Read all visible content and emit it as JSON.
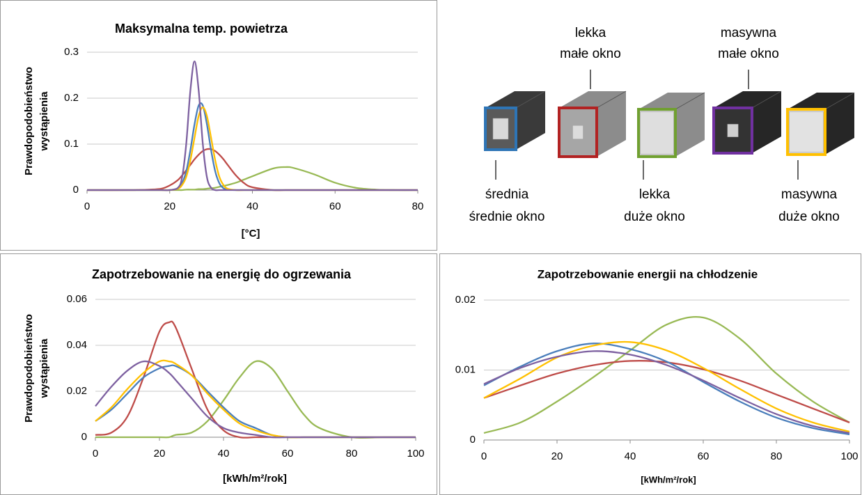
{
  "chart_data": [
    {
      "type": "line",
      "title": "Maksymalna temp. powietrza",
      "xlabel": "[°C]",
      "ylabel": [
        "Prawdopodobieństwo",
        "wystąpienia"
      ],
      "x": [
        0,
        10,
        15,
        18,
        20,
        22,
        23,
        24,
        25,
        26,
        27,
        28,
        29,
        30,
        31,
        32,
        33,
        34,
        36,
        38,
        40,
        45,
        48,
        50,
        55,
        60,
        65,
        70,
        75,
        80
      ],
      "xlim": [
        0,
        80
      ],
      "xticks": [
        0,
        20,
        40,
        60,
        80
      ],
      "ylim": [
        0,
        0.3
      ],
      "yticks": [
        0,
        0.1,
        0.2,
        0.3
      ],
      "grid": true,
      "series": [
        {
          "color": "#98b954",
          "values": [
            0,
            0,
            0,
            0,
            0,
            0,
            0,
            0.001,
            0.001,
            0.001,
            0.002,
            0.002,
            0.003,
            0.004,
            0.005,
            0.007,
            0.009,
            0.011,
            0.016,
            0.023,
            0.03,
            0.047,
            0.05,
            0.048,
            0.034,
            0.016,
            0.005,
            0.001,
            0,
            0
          ]
        },
        {
          "color": "#be4b48",
          "values": [
            0,
            0,
            0.001,
            0.003,
            0.01,
            0.022,
            0.032,
            0.043,
            0.055,
            0.067,
            0.077,
            0.085,
            0.089,
            0.089,
            0.085,
            0.077,
            0.067,
            0.055,
            0.032,
            0.015,
            0.006,
            0,
            0,
            0,
            0,
            0,
            0,
            0,
            0,
            0
          ]
        },
        {
          "color": "#4a7ebb",
          "values": [
            0,
            0,
            0,
            0,
            0,
            0.004,
            0.015,
            0.041,
            0.087,
            0.143,
            0.184,
            0.184,
            0.143,
            0.087,
            0.041,
            0.015,
            0.004,
            0.001,
            0,
            0,
            0,
            0,
            0,
            0,
            0,
            0,
            0,
            0,
            0,
            0
          ]
        },
        {
          "color": "#ffc000",
          "values": [
            0,
            0,
            0,
            0,
            0,
            0.003,
            0.011,
            0.029,
            0.065,
            0.114,
            0.161,
            0.18,
            0.161,
            0.114,
            0.065,
            0.029,
            0.011,
            0.003,
            0,
            0,
            0,
            0,
            0,
            0,
            0,
            0,
            0,
            0,
            0,
            0
          ]
        },
        {
          "color": "#7d60a0",
          "values": [
            0,
            0,
            0,
            0,
            0,
            0.005,
            0.028,
            0.101,
            0.217,
            0.28,
            0.217,
            0.101,
            0.028,
            0.005,
            0,
            0,
            0,
            0,
            0,
            0,
            0,
            0,
            0,
            0,
            0,
            0,
            0,
            0,
            0,
            0
          ]
        }
      ]
    },
    {
      "type": "line",
      "title": "Zapotrzebowanie  na energię do ogrzewania",
      "xlabel": "[kWh/m²/rok]",
      "ylabel": [
        "Prawdopodobieństwo",
        "wystąpienia"
      ],
      "x": [
        0,
        5,
        10,
        15,
        20,
        23,
        25,
        30,
        35,
        40,
        45,
        50,
        55,
        60,
        65,
        70,
        80,
        90,
        100
      ],
      "xlim": [
        0,
        100
      ],
      "xticks": [
        0,
        20,
        40,
        60,
        80,
        100
      ],
      "ylim": [
        0,
        0.06
      ],
      "yticks": [
        0,
        0.02,
        0.04,
        0.06
      ],
      "grid": true,
      "series": [
        {
          "color": "#98b954",
          "values": [
            0,
            0,
            0,
            0,
            0,
            0,
            0.001,
            0.002,
            0.007,
            0.016,
            0.026,
            0.033,
            0.03,
            0.02,
            0.01,
            0.004,
            0,
            0,
            0
          ]
        },
        {
          "color": "#be4b48",
          "values": [
            0.001,
            0.002,
            0.009,
            0.026,
            0.046,
            0.05,
            0.048,
            0.03,
            0.012,
            0.003,
            0,
            0,
            0,
            0,
            0,
            0,
            0,
            0,
            0
          ]
        },
        {
          "color": "#4a7ebb",
          "values": [
            0.007,
            0.012,
            0.019,
            0.026,
            0.03,
            0.031,
            0.031,
            0.027,
            0.02,
            0.013,
            0.007,
            0.004,
            0.001,
            0,
            0,
            0,
            0,
            0,
            0
          ]
        },
        {
          "color": "#ffc000",
          "values": [
            0.007,
            0.013,
            0.021,
            0.028,
            0.033,
            0.033,
            0.032,
            0.027,
            0.019,
            0.012,
            0.006,
            0.003,
            0.001,
            0,
            0,
            0,
            0,
            0,
            0
          ]
        },
        {
          "color": "#7d60a0",
          "values": [
            0.0135,
            0.022,
            0.029,
            0.033,
            0.031,
            0.028,
            0.025,
            0.017,
            0.009,
            0.004,
            0.002,
            0.001,
            0,
            0,
            0,
            0,
            0,
            0,
            0
          ]
        }
      ]
    },
    {
      "type": "line",
      "title": "Zapotrzebowanie energii na chłodzenie",
      "xlabel": "[kWh/m²/rok]",
      "x": [
        0,
        10,
        20,
        30,
        40,
        50,
        60,
        70,
        80,
        90,
        100
      ],
      "xlim": [
        0,
        100
      ],
      "xticks": [
        0,
        20,
        40,
        60,
        80,
        100
      ],
      "ylim": [
        0,
        0.02
      ],
      "yticks": [
        0,
        0.01,
        0.02
      ],
      "grid": true,
      "series": [
        {
          "color": "#98b954",
          "values": [
            0.001,
            0.0025,
            0.0055,
            0.009,
            0.0128,
            0.0165,
            0.0175,
            0.0145,
            0.0095,
            0.0055,
            0.0025
          ]
        },
        {
          "color": "#be4b48",
          "values": [
            0.006,
            0.0078,
            0.0095,
            0.0107,
            0.0113,
            0.0111,
            0.0101,
            0.0085,
            0.0065,
            0.0045,
            0.0025
          ]
        },
        {
          "color": "#4a7ebb",
          "values": [
            0.0078,
            0.0105,
            0.0127,
            0.0138,
            0.013,
            0.0112,
            0.0083,
            0.0055,
            0.0032,
            0.0017,
            0.0008
          ]
        },
        {
          "color": "#ffc000",
          "values": [
            0.006,
            0.0088,
            0.0118,
            0.0135,
            0.014,
            0.0128,
            0.0103,
            0.0073,
            0.0045,
            0.0025,
            0.0012
          ]
        },
        {
          "color": "#7d60a0",
          "values": [
            0.008,
            0.0103,
            0.0119,
            0.0127,
            0.0122,
            0.0107,
            0.0085,
            0.006,
            0.0037,
            0.002,
            0.001
          ]
        }
      ]
    }
  ],
  "diagram": {
    "items": [
      {
        "label": [
          "średnia",
          "średnie okno"
        ],
        "color": "#2e75b6"
      },
      {
        "label": [
          "lekka",
          "małe okno"
        ],
        "color": "#b22222"
      },
      {
        "label": [
          "lekka",
          "duże okno"
        ],
        "color": "#70a030"
      },
      {
        "label": [
          "masywna",
          "małe okno"
        ],
        "color": "#7030a0"
      },
      {
        "label": [
          "masywna",
          "duże okno"
        ],
        "color": "#ffc000"
      }
    ]
  }
}
